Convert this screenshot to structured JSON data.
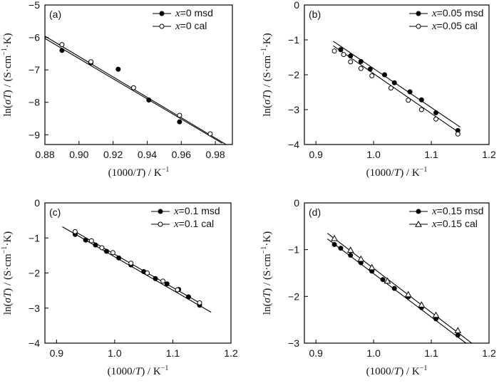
{
  "chart_data": [
    {
      "type": "scatter",
      "tag": "(a)",
      "xlabel": "(1000/T) / K⁻¹",
      "ylabel": "ln(σT) / (S·cm⁻¹·K)",
      "xlim": [
        0.88,
        0.99
      ],
      "ylim": [
        -9.3,
        -5.0
      ],
      "xticks": [
        "0.88",
        "0.90",
        "0.92",
        "0.94",
        "0.96",
        "0.98"
      ],
      "xtick_values": [
        0.88,
        0.9,
        0.92,
        0.94,
        0.96,
        0.98
      ],
      "yticks": [
        "−9",
        "−8",
        "−7",
        "−6",
        "−5"
      ],
      "ytick_values": [
        -9,
        -8,
        -7,
        -6,
        -5
      ],
      "legend_position": "top-right",
      "series": [
        {
          "name": "x=0 msd",
          "marker": "filled-circle",
          "x": [
            0.89,
            0.907,
            0.923,
            0.941,
            0.959
          ],
          "y": [
            -6.4,
            -6.78,
            -6.98,
            -7.93,
            -8.6
          ],
          "fit": [
            [
              0.88,
              -6.03
            ],
            [
              0.984,
              -9.26
            ]
          ]
        },
        {
          "name": "x=0 cal",
          "marker": "open-circle",
          "x": [
            0.89,
            0.907,
            0.932,
            0.959,
            0.977
          ],
          "y": [
            -6.22,
            -6.75,
            -7.55,
            -8.4,
            -8.97
          ],
          "fit": [
            [
              0.88,
              -5.96
            ],
            [
              0.986,
              -9.29
            ]
          ]
        }
      ]
    },
    {
      "type": "scatter",
      "tag": "(b)",
      "xlabel": "(1000/T) / K⁻¹",
      "ylabel": "ln(σT) / (S·cm⁻¹·K)",
      "xlim": [
        0.88,
        1.2
      ],
      "ylim": [
        -4.0,
        0.0
      ],
      "xticks": [
        "0.9",
        "1.0",
        "1.1",
        "1.2"
      ],
      "xtick_values": [
        0.9,
        1.0,
        1.1,
        1.2
      ],
      "yticks": [
        "−4",
        "−3",
        "−2",
        "−1",
        "0"
      ],
      "ytick_values": [
        -4,
        -3,
        -2,
        -1,
        0
      ],
      "legend_position": "top-right",
      "series": [
        {
          "name": "x=0.05 msd",
          "marker": "filled-circle",
          "x": [
            0.943,
            0.96,
            0.978,
            0.994,
            1.019,
            1.036,
            1.063,
            1.083,
            1.108,
            1.146
          ],
          "y": [
            -1.28,
            -1.46,
            -1.62,
            -1.84,
            -2.0,
            -2.23,
            -2.49,
            -2.72,
            -3.09,
            -3.6
          ],
          "fit": [
            [
              0.93,
              -1.04
            ],
            [
              1.15,
              -3.5
            ]
          ]
        },
        {
          "name": "x=0.05 cal",
          "marker": "open-circle",
          "x": [
            0.932,
            0.948,
            0.96,
            0.978,
            0.997,
            1.03,
            1.06,
            1.083,
            1.108,
            1.146
          ],
          "y": [
            -1.32,
            -1.42,
            -1.63,
            -1.82,
            -2.03,
            -2.38,
            -2.73,
            -3.0,
            -3.27,
            -3.7
          ],
          "fit": [
            [
              0.93,
              -1.17
            ],
            [
              1.15,
              -3.68
            ]
          ]
        }
      ]
    },
    {
      "type": "scatter",
      "tag": "(c)",
      "xlabel": "(1000/T) / K⁻¹",
      "ylabel": "ln(σT) / (S·cm⁻¹·K)",
      "xlim": [
        0.88,
        1.2
      ],
      "ylim": [
        -4.0,
        0.0
      ],
      "xticks": [
        "0.9",
        "1.0",
        "1.1",
        "1.2"
      ],
      "xtick_values": [
        0.9,
        1.0,
        1.1,
        1.2
      ],
      "yticks": [
        "−4",
        "−3",
        "−2",
        "−1",
        "0"
      ],
      "ytick_values": [
        -4,
        -3,
        -2,
        -1,
        0
      ],
      "legend_position": "top-right",
      "series": [
        {
          "name": "x=0.1 msd",
          "marker": "filled-circle",
          "x": [
            0.932,
            0.95,
            0.967,
            0.986,
            1.007,
            1.028,
            1.05,
            1.07,
            1.09,
            1.11,
            1.127,
            1.146
          ],
          "y": [
            -0.9,
            -1.06,
            -1.2,
            -1.38,
            -1.57,
            -1.77,
            -1.96,
            -2.16,
            -2.31,
            -2.47,
            -2.68,
            -2.92
          ],
          "fit": [
            [
              0.91,
              -0.68
            ],
            [
              1.166,
              -3.12
            ]
          ]
        },
        {
          "name": "x=0.1 cal",
          "marker": "open-circle",
          "x": [
            0.932,
            0.96,
            0.978,
            0.997,
            1.028,
            1.056,
            1.083,
            1.108,
            1.146
          ],
          "y": [
            -0.82,
            -1.08,
            -1.28,
            -1.42,
            -1.72,
            -2.0,
            -2.23,
            -2.48,
            -2.85
          ],
          "fit": [
            [
              0.932,
              -0.82
            ],
            [
              1.148,
              -2.87
            ]
          ]
        }
      ]
    },
    {
      "type": "scatter",
      "tag": "(d)",
      "xlabel": "(1000/T) / K⁻¹",
      "ylabel": "ln(σT) / (S·cm⁻¹·K)",
      "xlim": [
        0.88,
        1.2
      ],
      "ylim": [
        -3.0,
        0.0
      ],
      "xticks": [
        "0.9",
        "1.0",
        "1.1",
        "1.2"
      ],
      "xtick_values": [
        0.9,
        1.0,
        1.1,
        1.2
      ],
      "yticks": [
        "−3",
        "−2",
        "−1",
        "0"
      ],
      "ytick_values": [
        -3,
        -2,
        -1,
        0
      ],
      "legend_position": "top-right",
      "series": [
        {
          "name": "x=0.15 msd",
          "marker": "filled-circle",
          "x": [
            0.932,
            0.943,
            0.96,
            0.978,
            0.997,
            1.016,
            1.036,
            1.06,
            1.083,
            1.108,
            1.146
          ],
          "y": [
            -0.89,
            -0.97,
            -1.12,
            -1.28,
            -1.46,
            -1.64,
            -1.83,
            -2.01,
            -2.24,
            -2.48,
            -2.83
          ],
          "fit": [
            [
              0.92,
              -0.77
            ],
            [
              1.16,
              -3.0
            ]
          ]
        },
        {
          "name": "x=0.15 cal",
          "marker": "open-triangle",
          "x": [
            0.932,
            0.96,
            0.978,
            0.997,
            1.024,
            1.06,
            1.083,
            1.108,
            1.146
          ],
          "y": [
            -0.76,
            -1.01,
            -1.2,
            -1.38,
            -1.67,
            -1.96,
            -2.18,
            -2.4,
            -2.73
          ],
          "fit": [
            [
              0.92,
              -0.65
            ],
            [
              1.17,
              -3.0
            ]
          ]
        }
      ]
    }
  ]
}
